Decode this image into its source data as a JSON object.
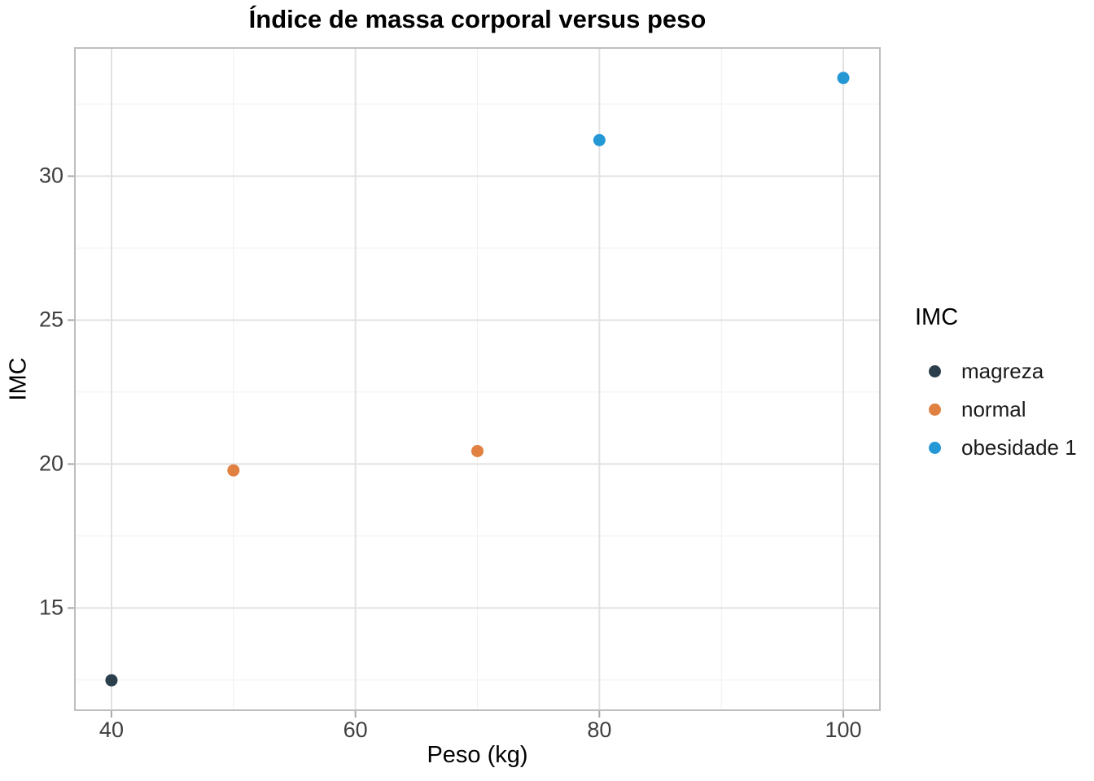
{
  "title": "Índice de massa corporal versus peso",
  "chart_data": {
    "type": "scatter",
    "title": "Índice de massa corporal versus peso",
    "xlabel": "Peso (kg)",
    "ylabel": "IMC",
    "xlim": [
      37,
      103
    ],
    "ylim": [
      11.45,
      34.45
    ],
    "x_major_ticks": [
      40,
      60,
      80,
      100
    ],
    "x_minor_ticks": [
      50,
      70,
      90
    ],
    "y_major_ticks": [
      15,
      20,
      25,
      30
    ],
    "y_minor_ticks": [
      12.5,
      17.5,
      22.5,
      27.5,
      32.5
    ],
    "grid": true,
    "legend_title": "IMC",
    "legend_position": "right",
    "series": [
      {
        "name": "magreza",
        "color": "#2b3e4c",
        "points": [
          {
            "x": 40,
            "y": 12.49
          }
        ]
      },
      {
        "name": "normal",
        "color": "#e08142",
        "points": [
          {
            "x": 50,
            "y": 19.78
          },
          {
            "x": 70,
            "y": 20.45
          }
        ]
      },
      {
        "name": "obesidade 1",
        "color": "#2498d5",
        "points": [
          {
            "x": 80,
            "y": 31.25
          },
          {
            "x": 100,
            "y": 33.41
          }
        ]
      }
    ]
  },
  "theme_colors": {
    "background": "#ffffff",
    "panel_background": "#ffffff",
    "panel_border": "#bebebe",
    "grid_major": "#e2e2e2",
    "grid_minor": "#f0f0f0",
    "axis_tick": "#a8a8a8",
    "tick_label_text": "#404040",
    "title_text": "#000000",
    "legend_text": "#1a1a1a"
  }
}
